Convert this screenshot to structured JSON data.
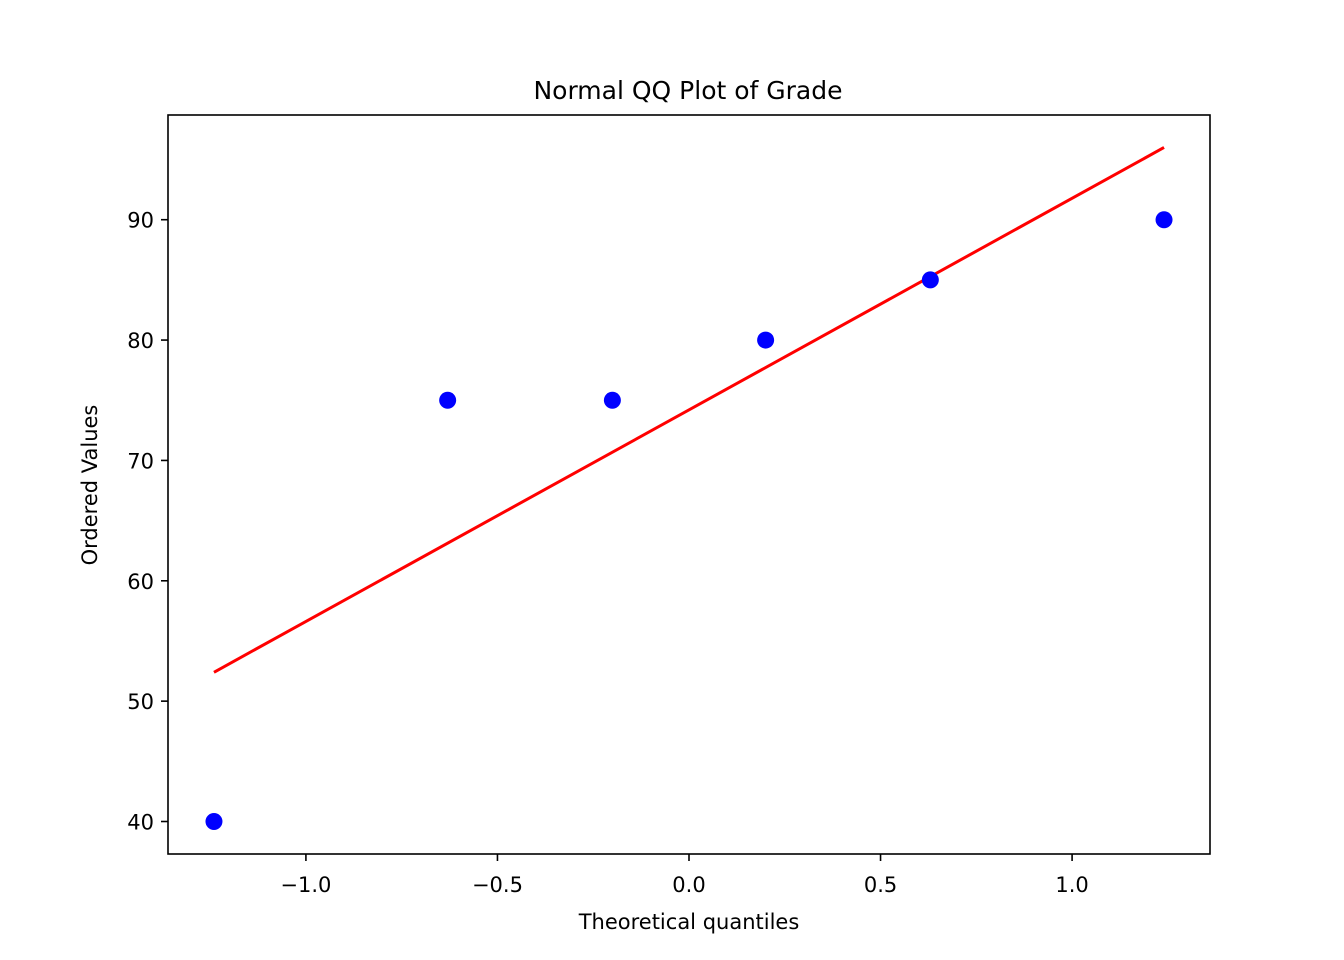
{
  "chart_data": {
    "type": "scatter",
    "title": "Normal QQ Plot of Grade",
    "xlabel": "Theoretical quantiles",
    "ylabel": "Ordered Values",
    "xlim": [
      -1.36,
      1.36
    ],
    "ylim": [
      37.3,
      98.7
    ],
    "x_ticks": [
      -1.0,
      -0.5,
      0.0,
      0.5,
      1.0
    ],
    "x_tick_labels": [
      "−1.0",
      "−0.5",
      "0.0",
      "0.5",
      "1.0"
    ],
    "y_ticks": [
      40,
      50,
      60,
      70,
      80,
      90
    ],
    "y_tick_labels": [
      "40",
      "50",
      "60",
      "70",
      "80",
      "90"
    ],
    "grid": false,
    "points": {
      "color": "#0000ff",
      "x": [
        -1.24,
        -0.63,
        -0.2,
        0.2,
        0.63,
        1.24
      ],
      "y": [
        40,
        75,
        75,
        80,
        85,
        90
      ]
    },
    "fit_line": {
      "color": "#ff0000",
      "x": [
        -1.24,
        1.24
      ],
      "y": [
        52.4,
        96.0
      ]
    }
  }
}
